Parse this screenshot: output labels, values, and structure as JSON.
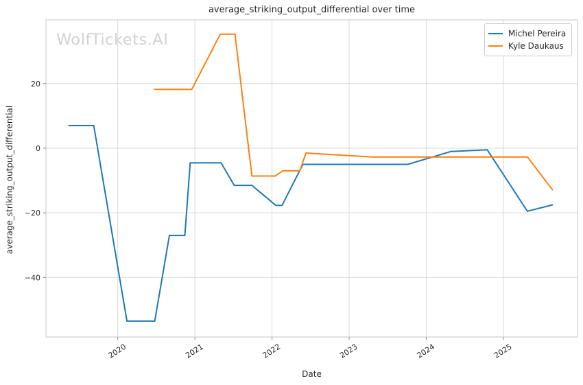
{
  "watermark": "WolfTickets.AI",
  "title": "average_striking_output_differential over time",
  "axes": {
    "x_label": "Date",
    "y_label": "average_striking_output_differential"
  },
  "legend": {
    "position": "upper right",
    "items": [
      {
        "label": "Michel Pereira",
        "color": "#1f77b4"
      },
      {
        "label": "Kyle Daukaus",
        "color": "#ff7f0e"
      }
    ]
  },
  "chart_data": {
    "type": "line",
    "title": "average_striking_output_differential over time",
    "xlabel": "Date",
    "ylabel": "average_striking_output_differential",
    "grid": true,
    "legend_position": "upper right",
    "xlim": [
      2019.07,
      2025.96
    ],
    "ylim": [
      -58.4,
      39.7
    ],
    "x_ticks": [
      {
        "value": 2020,
        "label": "2020"
      },
      {
        "value": 2021,
        "label": "2021"
      },
      {
        "value": 2022,
        "label": "2022"
      },
      {
        "value": 2023,
        "label": "2023"
      },
      {
        "value": 2024,
        "label": "2024"
      },
      {
        "value": 2025,
        "label": "2025"
      }
    ],
    "y_ticks": [
      {
        "value": 20,
        "label": "20"
      },
      {
        "value": 0,
        "label": "0"
      },
      {
        "value": -20,
        "label": "−20"
      },
      {
        "value": -40,
        "label": "−40"
      }
    ],
    "series": [
      {
        "name": "Michel Pereira",
        "color": "#1f77b4",
        "points": [
          [
            2019.36,
            7.0
          ],
          [
            2019.69,
            7.0
          ],
          [
            2020.12,
            -53.5
          ],
          [
            2020.48,
            -53.5
          ],
          [
            2020.67,
            -27.0
          ],
          [
            2020.87,
            -27.0
          ],
          [
            2020.94,
            -4.5
          ],
          [
            2021.34,
            -4.5
          ],
          [
            2021.51,
            -11.5
          ],
          [
            2021.74,
            -11.5
          ],
          [
            2022.05,
            -17.7
          ],
          [
            2022.13,
            -17.7
          ],
          [
            2022.4,
            -5.0
          ],
          [
            2023.76,
            -5.0
          ],
          [
            2024.32,
            -1.0
          ],
          [
            2024.79,
            -0.5
          ],
          [
            2025.31,
            -19.5
          ],
          [
            2025.64,
            -17.5
          ]
        ]
      },
      {
        "name": "Kyle Daukaus",
        "color": "#ff7f0e",
        "points": [
          [
            2020.47,
            18.2
          ],
          [
            2020.96,
            18.2
          ],
          [
            2021.33,
            35.3
          ],
          [
            2021.52,
            35.3
          ],
          [
            2021.74,
            -8.6
          ],
          [
            2022.04,
            -8.6
          ],
          [
            2022.14,
            -7.0
          ],
          [
            2022.36,
            -7.0
          ],
          [
            2022.44,
            -1.5
          ],
          [
            2023.3,
            -2.7
          ],
          [
            2025.31,
            -2.7
          ],
          [
            2025.64,
            -13.0
          ]
        ]
      }
    ]
  }
}
